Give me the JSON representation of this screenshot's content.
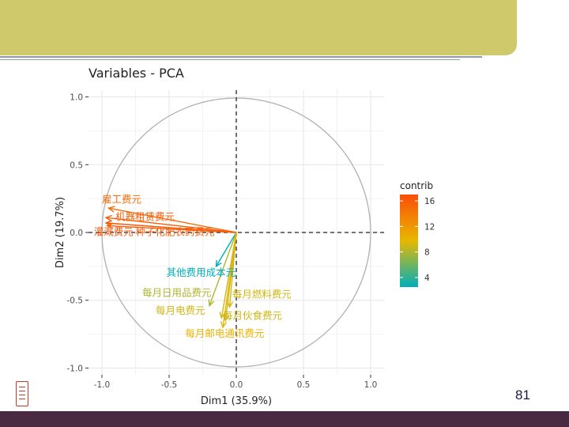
{
  "slide": {
    "page_number": "81",
    "colors": {
      "banner": "#cfc96c",
      "rule": "#8f9aa8",
      "footer": "#4a2a43"
    }
  },
  "chart_data": {
    "type": "scatter",
    "title": "Variables - PCA",
    "xlabel": "Dim1 (35.9%)",
    "ylabel": "Dim2 (19.7%)",
    "xlim": [
      -1.1,
      1.1
    ],
    "ylim": [
      -1.05,
      1.05
    ],
    "xticks": [
      -1.0,
      -0.5,
      0.0,
      0.5,
      1.0
    ],
    "xtick_labels": [
      "-1.0",
      "-0.5",
      "0.0",
      "0.5",
      "1.0"
    ],
    "yticks": [
      1.0,
      0.5,
      0.0,
      -0.5,
      -1.0
    ],
    "ytick_labels": [
      "1.0",
      "0.5",
      "0.0",
      "-0.5",
      "-1.0"
    ],
    "grid": true,
    "legend": {
      "title": "contrib",
      "ticks": [
        "16",
        "12",
        "8",
        "4"
      ],
      "tick_values": [
        16,
        12,
        8,
        4
      ],
      "range": [
        2.5,
        17
      ],
      "placement": "right"
    },
    "color_scale": [
      "#00afbb",
      "#e7b800",
      "#fc4e07"
    ],
    "variables": [
      {
        "name": "雇工费元",
        "x": -0.95,
        "y": 0.18,
        "contrib": 15,
        "label_x": -1.0,
        "label_y": 0.22
      },
      {
        "name": "机器租赁费元",
        "x": -0.97,
        "y": 0.11,
        "contrib": 16,
        "label_x": -0.9,
        "label_y": 0.09
      },
      {
        "name": "灌溉费元",
        "x": -0.97,
        "y": 0.07,
        "contrib": 16.5,
        "label_x": -1.06,
        "label_y": -0.02
      },
      {
        "name": "种子化肥农药费元",
        "x": -0.96,
        "y": 0.05,
        "contrib": 16,
        "label_x": -0.75,
        "label_y": -0.02
      },
      {
        "name": "其他费用成本元",
        "x": -0.15,
        "y": -0.25,
        "contrib": 2.5,
        "label_x": -0.52,
        "label_y": -0.32
      },
      {
        "name": "每月日用品费元",
        "x": -0.2,
        "y": -0.54,
        "contrib": 8,
        "label_x": -0.7,
        "label_y": -0.47
      },
      {
        "name": "每月燃料费元",
        "x": -0.05,
        "y": -0.55,
        "contrib": 9,
        "label_x": -0.03,
        "label_y": -0.48
      },
      {
        "name": "每月电费元",
        "x": -0.11,
        "y": -0.63,
        "contrib": 9,
        "label_x": -0.6,
        "label_y": -0.6
      },
      {
        "name": "每月伙食费元",
        "x": -0.08,
        "y": -0.65,
        "contrib": 9,
        "label_x": -0.1,
        "label_y": -0.64
      },
      {
        "name": "每月邮电通讯费元",
        "x": -0.1,
        "y": -0.7,
        "contrib": 10,
        "label_x": -0.38,
        "label_y": -0.77
      }
    ]
  }
}
